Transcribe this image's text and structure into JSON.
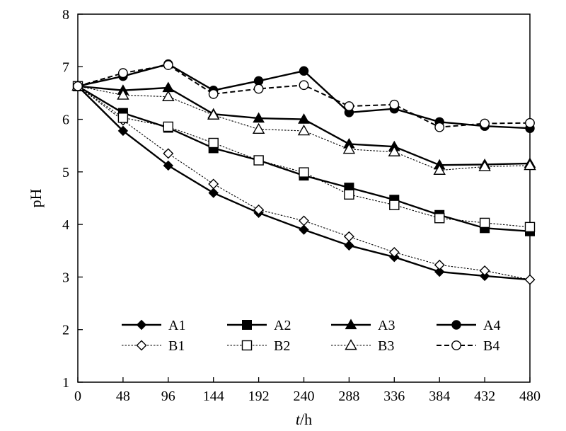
{
  "chart_data": {
    "type": "line",
    "xlabel_italic": "t",
    "xlabel_rest": "/h",
    "ylabel": "pH",
    "x": [
      0,
      48,
      96,
      144,
      192,
      240,
      288,
      336,
      384,
      432,
      480
    ],
    "x_tick_labels": [
      "0",
      "48",
      "96",
      "144",
      "192",
      "240",
      "288",
      "336",
      "384",
      "432",
      "480"
    ],
    "xlim": [
      0,
      480
    ],
    "ylim": [
      1,
      8
    ],
    "y_ticks": [
      1,
      2,
      3,
      4,
      5,
      6,
      7,
      8
    ],
    "y_tick_labels": [
      "1",
      "2",
      "3",
      "4",
      "5",
      "6",
      "7",
      "8"
    ],
    "grid": false,
    "legend_position": "bottom-inside",
    "series": [
      {
        "name": "A1",
        "marker": "diamond",
        "filled": true,
        "line": "solid-bold",
        "values": [
          6.63,
          5.78,
          5.12,
          4.6,
          4.22,
          3.9,
          3.6,
          3.38,
          3.1,
          3.02,
          2.95
        ]
      },
      {
        "name": "A2",
        "marker": "square",
        "filled": true,
        "line": "solid-bold",
        "values": [
          6.63,
          6.12,
          5.84,
          5.45,
          5.22,
          4.93,
          4.7,
          4.47,
          4.18,
          3.93,
          3.87
        ]
      },
      {
        "name": "A3",
        "marker": "triangle",
        "filled": true,
        "line": "solid-bold",
        "values": [
          6.63,
          6.55,
          6.6,
          6.1,
          6.02,
          6.0,
          5.53,
          5.48,
          5.13,
          5.14,
          5.16
        ]
      },
      {
        "name": "A4",
        "marker": "circle",
        "filled": true,
        "line": "solid-bold",
        "values": [
          6.63,
          6.82,
          7.05,
          6.55,
          6.73,
          6.92,
          6.13,
          6.2,
          5.95,
          5.87,
          5.83
        ]
      },
      {
        "name": "B1",
        "marker": "diamond",
        "filled": false,
        "line": "dotted-thin",
        "values": [
          6.63,
          5.98,
          5.35,
          4.77,
          4.28,
          4.07,
          3.77,
          3.47,
          3.23,
          3.12,
          2.95
        ]
      },
      {
        "name": "B2",
        "marker": "square",
        "filled": false,
        "line": "dotted-thin",
        "values": [
          6.63,
          6.03,
          5.86,
          5.55,
          5.22,
          4.99,
          4.57,
          4.37,
          4.12,
          4.03,
          3.95
        ]
      },
      {
        "name": "B3",
        "marker": "triangle",
        "filled": false,
        "line": "dotted-thin",
        "values": [
          6.63,
          6.46,
          6.43,
          6.08,
          5.81,
          5.78,
          5.43,
          5.38,
          5.03,
          5.1,
          5.12
        ]
      },
      {
        "name": "B4",
        "marker": "circle",
        "filled": false,
        "line": "dashed",
        "values": [
          6.63,
          6.88,
          7.03,
          6.48,
          6.58,
          6.65,
          6.25,
          6.28,
          5.85,
          5.92,
          5.93
        ]
      }
    ]
  }
}
